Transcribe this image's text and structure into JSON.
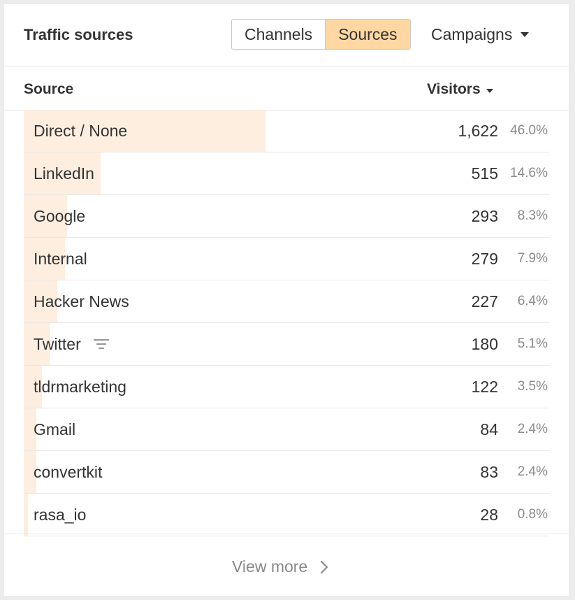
{
  "card": {
    "title": "Traffic sources",
    "tabs": [
      {
        "label": "Channels",
        "active": false
      },
      {
        "label": "Sources",
        "active": true
      },
      {
        "label": "Campaigns",
        "active": false
      }
    ]
  },
  "table": {
    "columns": {
      "source": "Source",
      "visitors": "Visitors"
    },
    "max_visitors": 1622,
    "rows": [
      {
        "name": "Direct / None",
        "visitors": "1,622",
        "value": 1622,
        "pct": "46.0%"
      },
      {
        "name": "LinkedIn",
        "visitors": "515",
        "value": 515,
        "pct": "14.6%"
      },
      {
        "name": "Google",
        "visitors": "293",
        "value": 293,
        "pct": "8.3%"
      },
      {
        "name": "Internal",
        "visitors": "279",
        "value": 279,
        "pct": "7.9%"
      },
      {
        "name": "Hacker News",
        "visitors": "227",
        "value": 227,
        "pct": "6.4%"
      },
      {
        "name": "Twitter",
        "visitors": "180",
        "value": 180,
        "pct": "5.1%",
        "icon": "filter-icon"
      },
      {
        "name": "tldrmarketing",
        "visitors": "122",
        "value": 122,
        "pct": "3.5%"
      },
      {
        "name": "Gmail",
        "visitors": "84",
        "value": 84,
        "pct": "2.4%"
      },
      {
        "name": "convertkit",
        "visitors": "83",
        "value": 83,
        "pct": "2.4%"
      },
      {
        "name": "rasa_io",
        "visitors": "28",
        "value": 28,
        "pct": "0.8%"
      }
    ]
  },
  "footer": {
    "view_more": "View more"
  },
  "colors": {
    "accent": "#ffd7a3",
    "bar": "#fdeee0",
    "border": "#c8c8c8"
  }
}
